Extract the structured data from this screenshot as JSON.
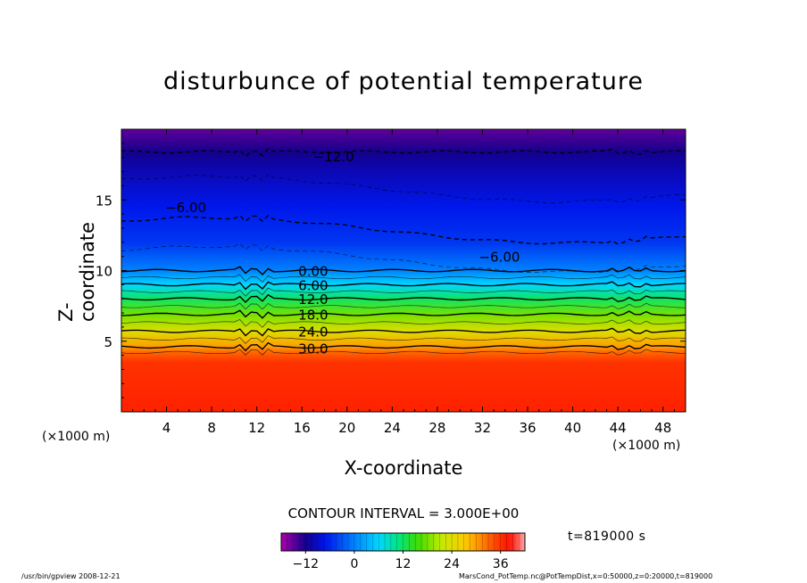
{
  "chart_data": {
    "type": "heatmap",
    "title": "disturbunce of potential temperature",
    "xlabel": "X-coordinate",
    "ylabel": "Z-coordinate",
    "x_unit_left": "(×1000 m)",
    "x_unit_right": "(×1000 m)",
    "xlim": [
      0,
      50
    ],
    "ylim": [
      0,
      20
    ],
    "x_ticks": [
      4,
      8,
      12,
      16,
      20,
      24,
      28,
      32,
      36,
      40,
      44,
      48
    ],
    "y_ticks": [
      5,
      10,
      15
    ],
    "contour_interval_text": "CONTOUR INTERVAL = 3.000E+00",
    "contour_labels": [
      {
        "text": "-12.0",
        "x": 18.8,
        "z": 18.1
      },
      {
        "text": "-6.00",
        "x": 5.7,
        "z": 14.5
      },
      {
        "text": "-6.00",
        "x": 33.5,
        "z": 11.0
      },
      {
        "text": "0.00",
        "x": 17.0,
        "z": 10.0
      },
      {
        "text": "6.00",
        "x": 17.0,
        "z": 9.0
      },
      {
        "text": "12.0",
        "x": 17.0,
        "z": 8.0
      },
      {
        "text": "18.0",
        "x": 17.0,
        "z": 6.9
      },
      {
        "text": "24.0",
        "x": 17.0,
        "z": 5.7
      },
      {
        "text": "30.0",
        "x": 17.0,
        "z": 4.5
      }
    ],
    "profile": [
      {
        "z": 0,
        "value": 37
      },
      {
        "z": 3.5,
        "value": 36
      },
      {
        "z": 4.2,
        "value": 33
      },
      {
        "z": 4.6,
        "value": 30
      },
      {
        "z": 5.7,
        "value": 24
      },
      {
        "z": 6.9,
        "value": 18
      },
      {
        "z": 8.0,
        "value": 12
      },
      {
        "z": 9.0,
        "value": 6
      },
      {
        "z": 10.0,
        "value": 0
      },
      {
        "z": 12.0,
        "value": -5
      },
      {
        "z": 14.5,
        "value": -7
      },
      {
        "z": 17.0,
        "value": -10
      },
      {
        "z": 18.4,
        "value": -12
      },
      {
        "z": 20.0,
        "value": -15
      }
    ],
    "colorbar": {
      "range": [
        -18,
        42
      ],
      "ticks": [
        -12,
        0,
        12,
        24,
        36
      ]
    },
    "time_label": "t=819000 s"
  },
  "footer": {
    "left": "/usr/bin/gpview   2008-12-21",
    "right": "MarsCond_PotTemp.nc@PotTempDist,x=0:50000,z=0:20000,t=819000"
  }
}
